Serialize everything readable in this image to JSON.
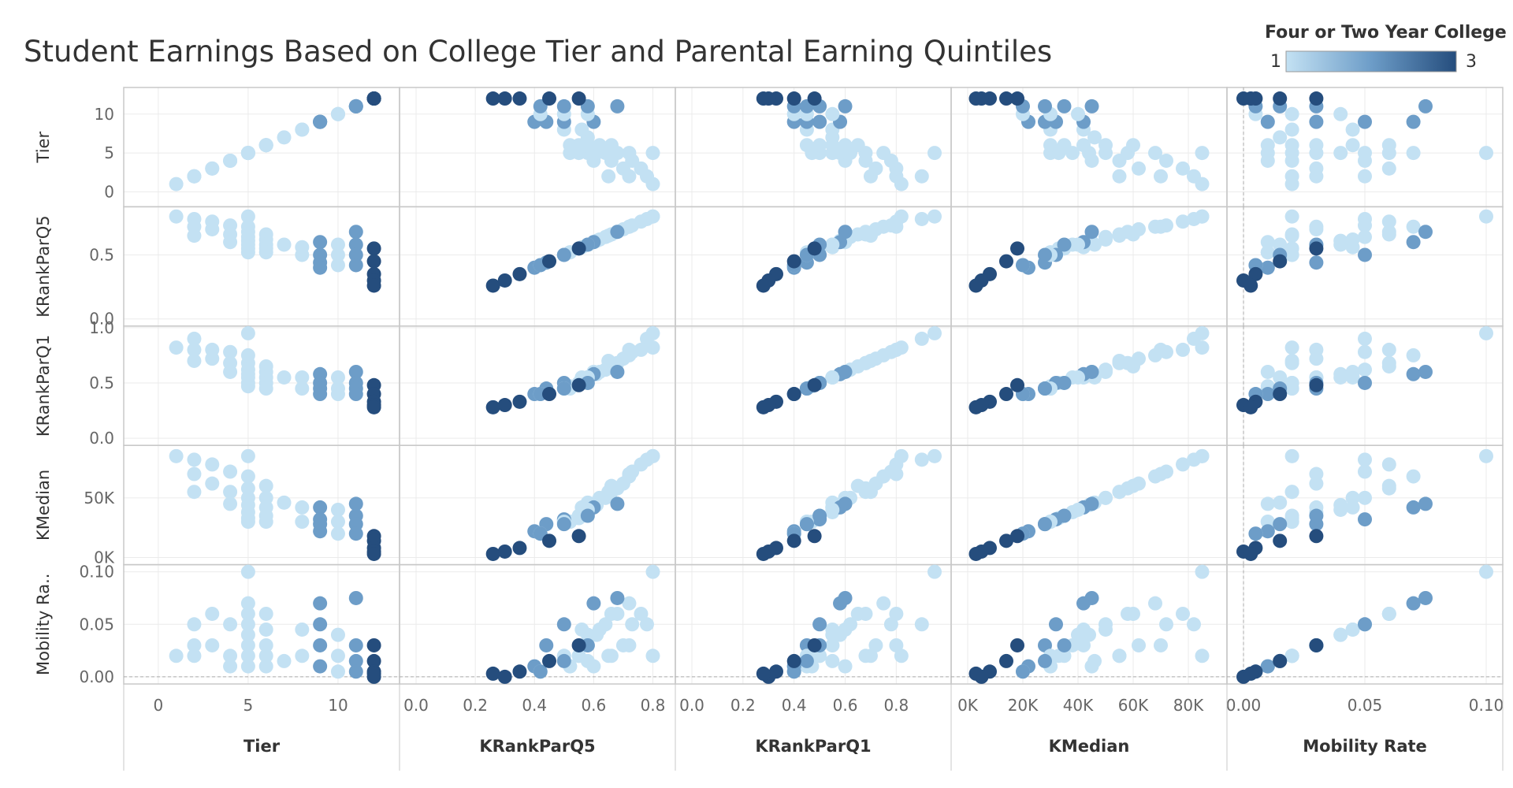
{
  "title": "Student Earnings Based on College Tier and Parental Earning Quintiles",
  "legend": {
    "title": "Four or Two Year College",
    "min_label": "1",
    "max_label": "3",
    "color_low": "#c3e1f3",
    "color_mid": "#6d9dc8",
    "color_high": "#254d7d"
  },
  "colors": {
    "grid": "#ebebeb",
    "border": "#c8c8c8",
    "zero_line": "#aaaaaa"
  },
  "chart_data": {
    "type": "scatter",
    "variables": [
      {
        "key": "tier",
        "label": "Tier",
        "row_label": "Tier",
        "domain": [
          -1,
          12.5
        ],
        "ticks": [
          {
            "v": 0,
            "t": "0"
          },
          {
            "v": 5,
            "t": "5"
          },
          {
            "v": 10,
            "t": "10"
          }
        ]
      },
      {
        "key": "q5",
        "label": "KRankParQ5",
        "row_label": "KRankParQ5",
        "domain": [
          0,
          0.82
        ],
        "ticks": [
          {
            "v": 0.0,
            "t": "0.0"
          },
          {
            "v": 0.2,
            "t": "0.2"
          },
          {
            "v": 0.4,
            "t": "0.4"
          },
          {
            "v": 0.6,
            "t": "0.6"
          },
          {
            "v": 0.8,
            "t": "0.8"
          }
        ],
        "y_ticks": [
          {
            "v": 0.0,
            "t": "0.0"
          },
          {
            "v": 0.5,
            "t": "0.5"
          }
        ]
      },
      {
        "key": "q1",
        "label": "KRankParQ1",
        "row_label": "KRankParQ1",
        "domain": [
          0,
          0.95
        ],
        "ticks": [
          {
            "v": 0.0,
            "t": "0.0"
          },
          {
            "v": 0.2,
            "t": "0.2"
          },
          {
            "v": 0.4,
            "t": "0.4"
          },
          {
            "v": 0.6,
            "t": "0.6"
          },
          {
            "v": 0.8,
            "t": "0.8"
          }
        ],
        "y_ticks": [
          {
            "v": 0.0,
            "t": "0.0"
          },
          {
            "v": 0.5,
            "t": "0.5"
          },
          {
            "v": 1.0,
            "t": "1.0"
          }
        ]
      },
      {
        "key": "kmedian",
        "label": "KMedian",
        "row_label": "KMedian",
        "domain": [
          0,
          88000
        ],
        "ticks": [
          {
            "v": 0,
            "t": "0K"
          },
          {
            "v": 20000,
            "t": "20K"
          },
          {
            "v": 40000,
            "t": "40K"
          },
          {
            "v": 60000,
            "t": "60K"
          },
          {
            "v": 80000,
            "t": "80K"
          }
        ],
        "y_ticks": [
          {
            "v": 0,
            "t": "0K"
          },
          {
            "v": 50000,
            "t": "50K"
          }
        ]
      },
      {
        "key": "mobility",
        "label": "Mobility Rate",
        "row_label": "Mobility Ra..",
        "domain": [
          0,
          0.1
        ],
        "ticks": [
          {
            "v": 0.0,
            "t": "0.00"
          },
          {
            "v": 0.05,
            "t": "0.05"
          },
          {
            "v": 0.1,
            "t": "0.10"
          }
        ],
        "y_ticks": [
          {
            "v": 0.0,
            "t": "0.00"
          },
          {
            "v": 0.05,
            "t": "0.05"
          },
          {
            "v": 0.1,
            "t": "0.10"
          }
        ]
      }
    ],
    "points": [
      {
        "tier": 1,
        "q5": 0.8,
        "q1": 0.82,
        "kmedian": 85000,
        "mobility": 0.02,
        "cat": 1
      },
      {
        "tier": 2,
        "q5": 0.78,
        "q1": 0.9,
        "kmedian": 82000,
        "mobility": 0.05,
        "cat": 1
      },
      {
        "tier": 2,
        "q5": 0.72,
        "q1": 0.8,
        "kmedian": 70000,
        "mobility": 0.03,
        "cat": 1
      },
      {
        "tier": 2,
        "q5": 0.65,
        "q1": 0.7,
        "kmedian": 55000,
        "mobility": 0.02,
        "cat": 1
      },
      {
        "tier": 3,
        "q5": 0.76,
        "q1": 0.8,
        "kmedian": 78000,
        "mobility": 0.06,
        "cat": 1
      },
      {
        "tier": 3,
        "q5": 0.7,
        "q1": 0.72,
        "kmedian": 62000,
        "mobility": 0.03,
        "cat": 1
      },
      {
        "tier": 4,
        "q5": 0.73,
        "q1": 0.78,
        "kmedian": 72000,
        "mobility": 0.05,
        "cat": 1
      },
      {
        "tier": 4,
        "q5": 0.66,
        "q1": 0.68,
        "kmedian": 55000,
        "mobility": 0.02,
        "cat": 1
      },
      {
        "tier": 4,
        "q5": 0.6,
        "q1": 0.6,
        "kmedian": 45000,
        "mobility": 0.01,
        "cat": 1
      },
      {
        "tier": 5,
        "q5": 0.8,
        "q1": 0.95,
        "kmedian": 85000,
        "mobility": 0.1,
        "cat": 1
      },
      {
        "tier": 5,
        "q5": 0.72,
        "q1": 0.75,
        "kmedian": 68000,
        "mobility": 0.07,
        "cat": 1
      },
      {
        "tier": 5,
        "q5": 0.68,
        "q1": 0.68,
        "kmedian": 58000,
        "mobility": 0.06,
        "cat": 1
      },
      {
        "tier": 5,
        "q5": 0.64,
        "q1": 0.62,
        "kmedian": 50000,
        "mobility": 0.05,
        "cat": 1
      },
      {
        "tier": 5,
        "q5": 0.61,
        "q1": 0.58,
        "kmedian": 44000,
        "mobility": 0.04,
        "cat": 1
      },
      {
        "tier": 5,
        "q5": 0.58,
        "q1": 0.55,
        "kmedian": 38000,
        "mobility": 0.03,
        "cat": 1
      },
      {
        "tier": 5,
        "q5": 0.55,
        "q1": 0.5,
        "kmedian": 33000,
        "mobility": 0.02,
        "cat": 1
      },
      {
        "tier": 5,
        "q5": 0.52,
        "q1": 0.47,
        "kmedian": 30000,
        "mobility": 0.01,
        "cat": 1
      },
      {
        "tier": 6,
        "q5": 0.66,
        "q1": 0.65,
        "kmedian": 60000,
        "mobility": 0.06,
        "cat": 1
      },
      {
        "tier": 6,
        "q5": 0.62,
        "q1": 0.6,
        "kmedian": 50000,
        "mobility": 0.045,
        "cat": 1
      },
      {
        "tier": 6,
        "q5": 0.58,
        "q1": 0.55,
        "kmedian": 42000,
        "mobility": 0.03,
        "cat": 1
      },
      {
        "tier": 6,
        "q5": 0.55,
        "q1": 0.5,
        "kmedian": 35000,
        "mobility": 0.02,
        "cat": 1
      },
      {
        "tier": 6,
        "q5": 0.52,
        "q1": 0.45,
        "kmedian": 30000,
        "mobility": 0.01,
        "cat": 1
      },
      {
        "tier": 7,
        "q5": 0.58,
        "q1": 0.55,
        "kmedian": 46000,
        "mobility": 0.015,
        "cat": 1
      },
      {
        "tier": 8,
        "q5": 0.56,
        "q1": 0.55,
        "kmedian": 42000,
        "mobility": 0.045,
        "cat": 1
      },
      {
        "tier": 8,
        "q5": 0.5,
        "q1": 0.45,
        "kmedian": 30000,
        "mobility": 0.02,
        "cat": 1
      },
      {
        "tier": 9,
        "q5": 0.6,
        "q1": 0.58,
        "kmedian": 42000,
        "mobility": 0.07,
        "cat": 2
      },
      {
        "tier": 9,
        "q5": 0.5,
        "q1": 0.5,
        "kmedian": 32000,
        "mobility": 0.05,
        "cat": 2
      },
      {
        "tier": 9,
        "q5": 0.44,
        "q1": 0.45,
        "kmedian": 28000,
        "mobility": 0.03,
        "cat": 2
      },
      {
        "tier": 9,
        "q5": 0.4,
        "q1": 0.4,
        "kmedian": 22000,
        "mobility": 0.01,
        "cat": 2
      },
      {
        "tier": 10,
        "q5": 0.58,
        "q1": 0.55,
        "kmedian": 40000,
        "mobility": 0.04,
        "cat": 1
      },
      {
        "tier": 10,
        "q5": 0.5,
        "q1": 0.45,
        "kmedian": 30000,
        "mobility": 0.02,
        "cat": 1
      },
      {
        "tier": 10,
        "q5": 0.42,
        "q1": 0.4,
        "kmedian": 20000,
        "mobility": 0.005,
        "cat": 1
      },
      {
        "tier": 11,
        "q5": 0.68,
        "q1": 0.6,
        "kmedian": 45000,
        "mobility": 0.075,
        "cat": 2
      },
      {
        "tier": 11,
        "q5": 0.58,
        "q1": 0.5,
        "kmedian": 35000,
        "mobility": 0.03,
        "cat": 2
      },
      {
        "tier": 11,
        "q5": 0.5,
        "q1": 0.45,
        "kmedian": 28000,
        "mobility": 0.015,
        "cat": 2
      },
      {
        "tier": 11,
        "q5": 0.42,
        "q1": 0.4,
        "kmedian": 20000,
        "mobility": 0.005,
        "cat": 2
      },
      {
        "tier": 12,
        "q5": 0.55,
        "q1": 0.48,
        "kmedian": 18000,
        "mobility": 0.03,
        "cat": 3
      },
      {
        "tier": 12,
        "q5": 0.45,
        "q1": 0.4,
        "kmedian": 14000,
        "mobility": 0.015,
        "cat": 3
      },
      {
        "tier": 12,
        "q5": 0.35,
        "q1": 0.33,
        "kmedian": 8000,
        "mobility": 0.005,
        "cat": 3
      },
      {
        "tier": 12,
        "q5": 0.3,
        "q1": 0.3,
        "kmedian": 5000,
        "mobility": 0.0,
        "cat": 3
      },
      {
        "tier": 12,
        "q5": 0.26,
        "q1": 0.28,
        "kmedian": 3000,
        "mobility": 0.003,
        "cat": 3
      }
    ]
  }
}
